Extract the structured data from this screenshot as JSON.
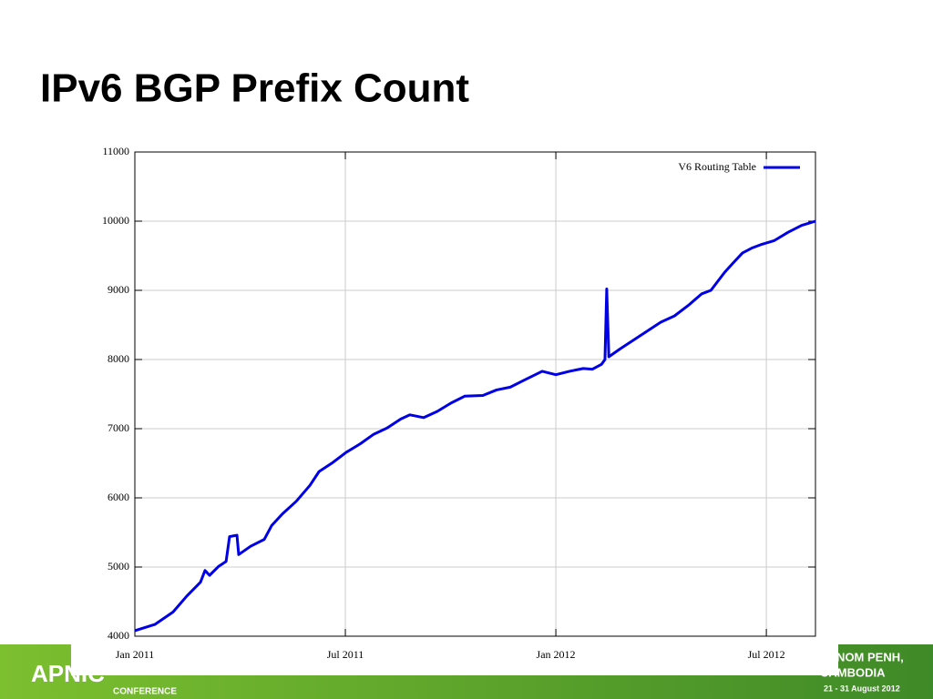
{
  "title": "IPv6 BGP Prefix Count",
  "footer": {
    "logo": "APNIC",
    "event": "CONFERENCE",
    "city": "PHNOM PENH,",
    "country": "CAMBODIA",
    "dates": "21 - 31 August 2012"
  },
  "chart_data": {
    "type": "line",
    "x": [
      0,
      0.57,
      1.09,
      1.48,
      1.87,
      2.0,
      2.13,
      2.39,
      2.6,
      2.7,
      2.91,
      2.96,
      3.3,
      3.69,
      3.9,
      4.21,
      4.6,
      4.99,
      5.25,
      5.64,
      6.03,
      6.42,
      6.81,
      7.19,
      7.58,
      7.84,
      8.23,
      8.62,
      9.01,
      9.4,
      9.92,
      10.31,
      10.7,
      11.09,
      11.61,
      12.0,
      12.39,
      12.78,
      13.04,
      13.3,
      13.4,
      13.45,
      13.51,
      13.82,
      14.21,
      14.6,
      14.99,
      15.38,
      15.77,
      16.16,
      16.42,
      16.81,
      17.06,
      17.32,
      17.58,
      17.84,
      18.23,
      18.62,
      19.01,
      19.4
    ],
    "series": [
      {
        "name": "V6 Routing Table",
        "color": "#0000e6",
        "values": [
          4080,
          4170,
          4350,
          4580,
          4780,
          4950,
          4880,
          5010,
          5080,
          5440,
          5460,
          5180,
          5300,
          5400,
          5600,
          5770,
          5950,
          6180,
          6380,
          6510,
          6660,
          6780,
          6920,
          7010,
          7140,
          7200,
          7160,
          7250,
          7370,
          7470,
          7480,
          7560,
          7600,
          7700,
          7830,
          7780,
          7830,
          7870,
          7860,
          7930,
          8000,
          9020,
          8040,
          8150,
          8280,
          8410,
          8540,
          8630,
          8780,
          8950,
          9000,
          9260,
          9400,
          9540,
          9610,
          9660,
          9720,
          9840,
          9940,
          10000
        ]
      }
    ],
    "xlim": [
      0,
      19.4
    ],
    "xticks": [
      {
        "value": 0,
        "label": "Jan 2011"
      },
      {
        "value": 6,
        "label": "Jul 2011"
      },
      {
        "value": 12,
        "label": "Jan 2012"
      },
      {
        "value": 18,
        "label": "Jul 2012"
      }
    ],
    "ylim": [
      4000,
      11000
    ],
    "yticks": [
      4000,
      5000,
      6000,
      7000,
      8000,
      9000,
      10000,
      11000
    ],
    "grid": true,
    "legend": "upper right"
  }
}
